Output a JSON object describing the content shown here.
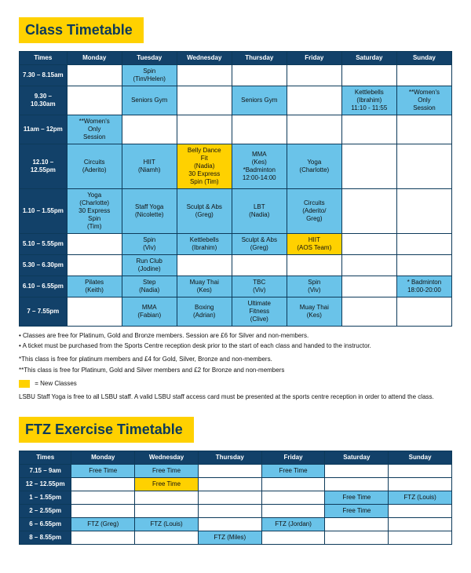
{
  "colors": {
    "header_bg": "#124169",
    "rowhead_bg": "#124169",
    "title_bg": "#ffd100",
    "cell_blue": "#6ac3e9",
    "cell_yellow": "#ffd100",
    "cell_light": "#e8f5fb",
    "cell_white": "#ffffff",
    "text_on_dark": "#ffffff",
    "table_border": "#0d3a5a"
  },
  "class_timetable": {
    "title": "Class Timetable",
    "columns": [
      "Times",
      "Monday",
      "Tuesday",
      "Wednesday",
      "Thursday",
      "Friday",
      "Saturday",
      "Sunday"
    ],
    "col_widths": [
      "11%",
      "12.7%",
      "12.7%",
      "12.7%",
      "12.7%",
      "12.7%",
      "12.7%",
      "12.7%"
    ],
    "rows": [
      {
        "time": "7.30 – 8.15am",
        "cells": [
          {
            "text": "",
            "fill": "cell_white"
          },
          {
            "text": "Spin\n(Tim/Helen)",
            "fill": "cell_blue"
          },
          {
            "text": "",
            "fill": "cell_white"
          },
          {
            "text": "",
            "fill": "cell_white"
          },
          {
            "text": "",
            "fill": "cell_white"
          },
          {
            "text": "",
            "fill": "cell_white"
          },
          {
            "text": "",
            "fill": "cell_white"
          }
        ]
      },
      {
        "time": "9.30 –\n10.30am",
        "cells": [
          {
            "text": "",
            "fill": "cell_white"
          },
          {
            "text": "Seniors Gym",
            "fill": "cell_blue"
          },
          {
            "text": "",
            "fill": "cell_white"
          },
          {
            "text": "Seniors Gym",
            "fill": "cell_blue"
          },
          {
            "text": "",
            "fill": "cell_white"
          },
          {
            "text": "Kettlebells\n(Ibrahim)\n11:10 - 11:55",
            "fill": "cell_blue"
          },
          {
            "text": "**Women's\nOnly\nSession",
            "fill": "cell_blue"
          }
        ]
      },
      {
        "time": "11am – 12pm",
        "cells": [
          {
            "text": "**Women's\nOnly\nSession",
            "fill": "cell_blue"
          },
          {
            "text": "",
            "fill": "cell_white"
          },
          {
            "text": "",
            "fill": "cell_white"
          },
          {
            "text": "",
            "fill": "cell_white"
          },
          {
            "text": "",
            "fill": "cell_white"
          },
          {
            "text": "",
            "fill": "cell_white"
          },
          {
            "text": "",
            "fill": "cell_white"
          }
        ]
      },
      {
        "time": "12.10 –\n12.55pm",
        "cells": [
          {
            "text": "Circuits\n(Aderito)",
            "fill": "cell_blue"
          },
          {
            "text": "HIIT\n(Niamh)",
            "fill": "cell_blue"
          },
          {
            "text": "Belly Dance\nFit\n(Nadia)\n30 Express\nSpin (Tim)",
            "fill": "cell_yellow"
          },
          {
            "text": "MMA\n(Kes)\n*Badminton\n12:00-14:00",
            "fill": "cell_blue"
          },
          {
            "text": "Yoga\n(Charlotte)",
            "fill": "cell_blue"
          },
          {
            "text": "",
            "fill": "cell_white"
          },
          {
            "text": "",
            "fill": "cell_white"
          }
        ]
      },
      {
        "time": "1.10 – 1.55pm",
        "cells": [
          {
            "text": "Yoga\n(Charlotte)\n30 Express\nSpin\n(Tim)",
            "fill": "cell_blue"
          },
          {
            "text": "Staff Yoga\n(Nicolette)",
            "fill": "cell_blue"
          },
          {
            "text": "Sculpt & Abs\n(Greg)",
            "fill": "cell_blue"
          },
          {
            "text": "LBT\n(Nadia)",
            "fill": "cell_blue"
          },
          {
            "text": "Circuits\n(Aderito/\nGreg)",
            "fill": "cell_blue"
          },
          {
            "text": "",
            "fill": "cell_white"
          },
          {
            "text": "",
            "fill": "cell_white"
          }
        ]
      },
      {
        "time": "5.10 – 5.55pm",
        "cells": [
          {
            "text": "",
            "fill": "cell_white"
          },
          {
            "text": "Spin\n(Viv)",
            "fill": "cell_blue"
          },
          {
            "text": "Kettlebells\n(Ibrahim)",
            "fill": "cell_blue"
          },
          {
            "text": "Sculpt & Abs\n(Greg)",
            "fill": "cell_blue"
          },
          {
            "text": "HIIT\n(AOS Team)",
            "fill": "cell_yellow"
          },
          {
            "text": "",
            "fill": "cell_white"
          },
          {
            "text": "",
            "fill": "cell_white"
          }
        ]
      },
      {
        "time": "5.30 – 6.30pm",
        "cells": [
          {
            "text": "",
            "fill": "cell_white"
          },
          {
            "text": "Run Club\n(Jodine)",
            "fill": "cell_blue"
          },
          {
            "text": "",
            "fill": "cell_white"
          },
          {
            "text": "",
            "fill": "cell_white"
          },
          {
            "text": "",
            "fill": "cell_white"
          },
          {
            "text": "",
            "fill": "cell_white"
          },
          {
            "text": "",
            "fill": "cell_white"
          }
        ]
      },
      {
        "time": "6.10 – 6.55pm",
        "cells": [
          {
            "text": "Pilates\n(Keith)",
            "fill": "cell_blue"
          },
          {
            "text": "Step\n(Nadia)",
            "fill": "cell_blue"
          },
          {
            "text": "Muay Thai\n(Kes)",
            "fill": "cell_blue"
          },
          {
            "text": "TBC\n(Viv)",
            "fill": "cell_blue"
          },
          {
            "text": "Spin\n(Viv)",
            "fill": "cell_blue"
          },
          {
            "text": "",
            "fill": "cell_white"
          },
          {
            "text": "* Badminton\n18:00-20:00",
            "fill": "cell_blue"
          }
        ]
      },
      {
        "time": "7 – 7.55pm",
        "cells": [
          {
            "text": "",
            "fill": "cell_white"
          },
          {
            "text": "MMA\n(Fabian)",
            "fill": "cell_blue"
          },
          {
            "text": "Boxing\n(Adrian)",
            "fill": "cell_blue"
          },
          {
            "text": "Ultimate\nFitness\n(Clive)",
            "fill": "cell_blue"
          },
          {
            "text": "Muay Thai\n(Kes)",
            "fill": "cell_blue"
          },
          {
            "text": "",
            "fill": "cell_white"
          },
          {
            "text": "",
            "fill": "cell_white"
          }
        ]
      }
    ]
  },
  "notes": {
    "line1": "Classes are free for Platinum, Gold and Bronze members. Session are £6 for Silver and non-members.",
    "line2": "A ticket must be purchased from the Sports Centre reception desk prior to the start of each class and handed to the instructor.",
    "line3": "*This class is free for platinum members and £4 for Gold, Silver, Bronze and non-members.",
    "line4": "**This class is free for Platinum, Gold and Silver members and £2 for Bronze and non-members",
    "legend": "= New Classes",
    "line5": "LSBU Staff Yoga is free to all LSBU staff. A valid LSBU staff access card must be presented at the sports centre reception in order to attend the class."
  },
  "ftz_timetable": {
    "title": "FTZ Exercise Timetable",
    "columns": [
      "Times",
      "Monday",
      "Wednesday",
      "Thursday",
      "Friday",
      "Saturday",
      "Sunday"
    ],
    "col_widths": [
      "12%",
      "14.6%",
      "14.6%",
      "14.6%",
      "14.6%",
      "14.6%",
      "14.6%"
    ],
    "rows": [
      {
        "time": "7.15 – 9am",
        "cells": [
          {
            "text": "Free Time",
            "fill": "cell_blue"
          },
          {
            "text": "Free Time",
            "fill": "cell_blue"
          },
          {
            "text": "",
            "fill": "cell_white"
          },
          {
            "text": "Free Time",
            "fill": "cell_blue"
          },
          {
            "text": "",
            "fill": "cell_white"
          },
          {
            "text": "",
            "fill": "cell_white"
          }
        ]
      },
      {
        "time": "12 – 12.55pm",
        "cells": [
          {
            "text": "",
            "fill": "cell_white"
          },
          {
            "text": "Free Time",
            "fill": "cell_yellow"
          },
          {
            "text": "",
            "fill": "cell_white"
          },
          {
            "text": "",
            "fill": "cell_white"
          },
          {
            "text": "",
            "fill": "cell_white"
          },
          {
            "text": "",
            "fill": "cell_white"
          }
        ]
      },
      {
        "time": "1 – 1.55pm",
        "cells": [
          {
            "text": "",
            "fill": "cell_white"
          },
          {
            "text": "",
            "fill": "cell_white"
          },
          {
            "text": "",
            "fill": "cell_white"
          },
          {
            "text": "",
            "fill": "cell_white"
          },
          {
            "text": "Free Time",
            "fill": "cell_blue"
          },
          {
            "text": "FTZ (Louis)",
            "fill": "cell_blue"
          }
        ]
      },
      {
        "time": "2 – 2.55pm",
        "cells": [
          {
            "text": "",
            "fill": "cell_white"
          },
          {
            "text": "",
            "fill": "cell_white"
          },
          {
            "text": "",
            "fill": "cell_white"
          },
          {
            "text": "",
            "fill": "cell_white"
          },
          {
            "text": "Free Time",
            "fill": "cell_blue"
          },
          {
            "text": "",
            "fill": "cell_white"
          }
        ]
      },
      {
        "time": "6 – 6.55pm",
        "cells": [
          {
            "text": "FTZ (Greg)",
            "fill": "cell_blue"
          },
          {
            "text": "FTZ (Louis)",
            "fill": "cell_blue"
          },
          {
            "text": "",
            "fill": "cell_white"
          },
          {
            "text": "FTZ (Jordan)",
            "fill": "cell_blue"
          },
          {
            "text": "",
            "fill": "cell_white"
          },
          {
            "text": "",
            "fill": "cell_white"
          }
        ]
      },
      {
        "time": "8 – 8.55pm",
        "cells": [
          {
            "text": "",
            "fill": "cell_white"
          },
          {
            "text": "",
            "fill": "cell_white"
          },
          {
            "text": "FTZ (Miles)",
            "fill": "cell_blue"
          },
          {
            "text": "",
            "fill": "cell_white"
          },
          {
            "text": "",
            "fill": "cell_white"
          },
          {
            "text": "",
            "fill": "cell_white"
          }
        ]
      }
    ]
  }
}
